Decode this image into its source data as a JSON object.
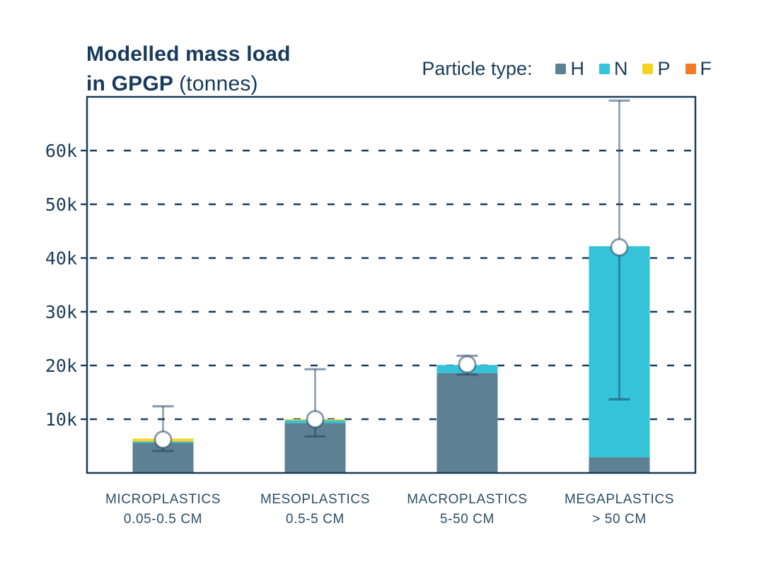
{
  "title": {
    "line1": "Modelled mass load",
    "line2_bold": "in GPGP",
    "line2_regular": "(tonnes)"
  },
  "legend": {
    "label": "Particle type:",
    "items": [
      {
        "name": "H",
        "color": "#5e8093"
      },
      {
        "name": "N",
        "color": "#35c3da"
      },
      {
        "name": "P",
        "color": "#f7d321"
      },
      {
        "name": "F",
        "color": "#f07c26"
      }
    ]
  },
  "chart_data": {
    "type": "bar",
    "stacked": true,
    "title": "Modelled mass load in GPGP (tonnes)",
    "unit": "tonnes",
    "categories": [
      {
        "label": "MICROPLASTICS",
        "range": "0.05-0.5 CM"
      },
      {
        "label": "MESOPLASTICS",
        "range": "0.5-5 CM"
      },
      {
        "label": "MACROPLASTICS",
        "range": "5-50 CM"
      },
      {
        "label": "MEGAPLASTICS",
        "range": "> 50 CM"
      }
    ],
    "series": [
      {
        "name": "H",
        "color": "#5e8093",
        "values": [
          5600,
          9300,
          18600,
          2900
        ]
      },
      {
        "name": "N",
        "color": "#35c3da",
        "values": [
          250,
          500,
          1500,
          39300
        ]
      },
      {
        "name": "P",
        "color": "#f7d321",
        "values": [
          550,
          200,
          0,
          0
        ]
      },
      {
        "name": "F",
        "color": "#f07c26",
        "values": [
          0,
          0,
          0,
          0
        ]
      }
    ],
    "totals": [
      6400,
      10000,
      20100,
      42200
    ],
    "error_bars": [
      {
        "center": 6200,
        "low": 4100,
        "high": 12400
      },
      {
        "center": 10000,
        "low": 6800,
        "high": 19300
      },
      {
        "center": 20200,
        "low": 18300,
        "high": 21800
      },
      {
        "center": 42000,
        "low": 13700,
        "high": 69300
      }
    ],
    "ylim": [
      0,
      70000
    ],
    "yticks": [
      {
        "value": 10000,
        "label": "10k"
      },
      {
        "value": 20000,
        "label": "20k"
      },
      {
        "value": 30000,
        "label": "30k"
      },
      {
        "value": 40000,
        "label": "40k"
      },
      {
        "value": 50000,
        "label": "50k"
      },
      {
        "value": 60000,
        "label": "60k"
      }
    ],
    "grid": "horizontal-dashed",
    "legend_position": "top-right"
  },
  "colors": {
    "text": "#1b3c59",
    "axis": "#1b3c59",
    "grid": "#1b3c59",
    "error_bar": "rgba(27,60,89,0.5)",
    "background": "#ffffff"
  }
}
